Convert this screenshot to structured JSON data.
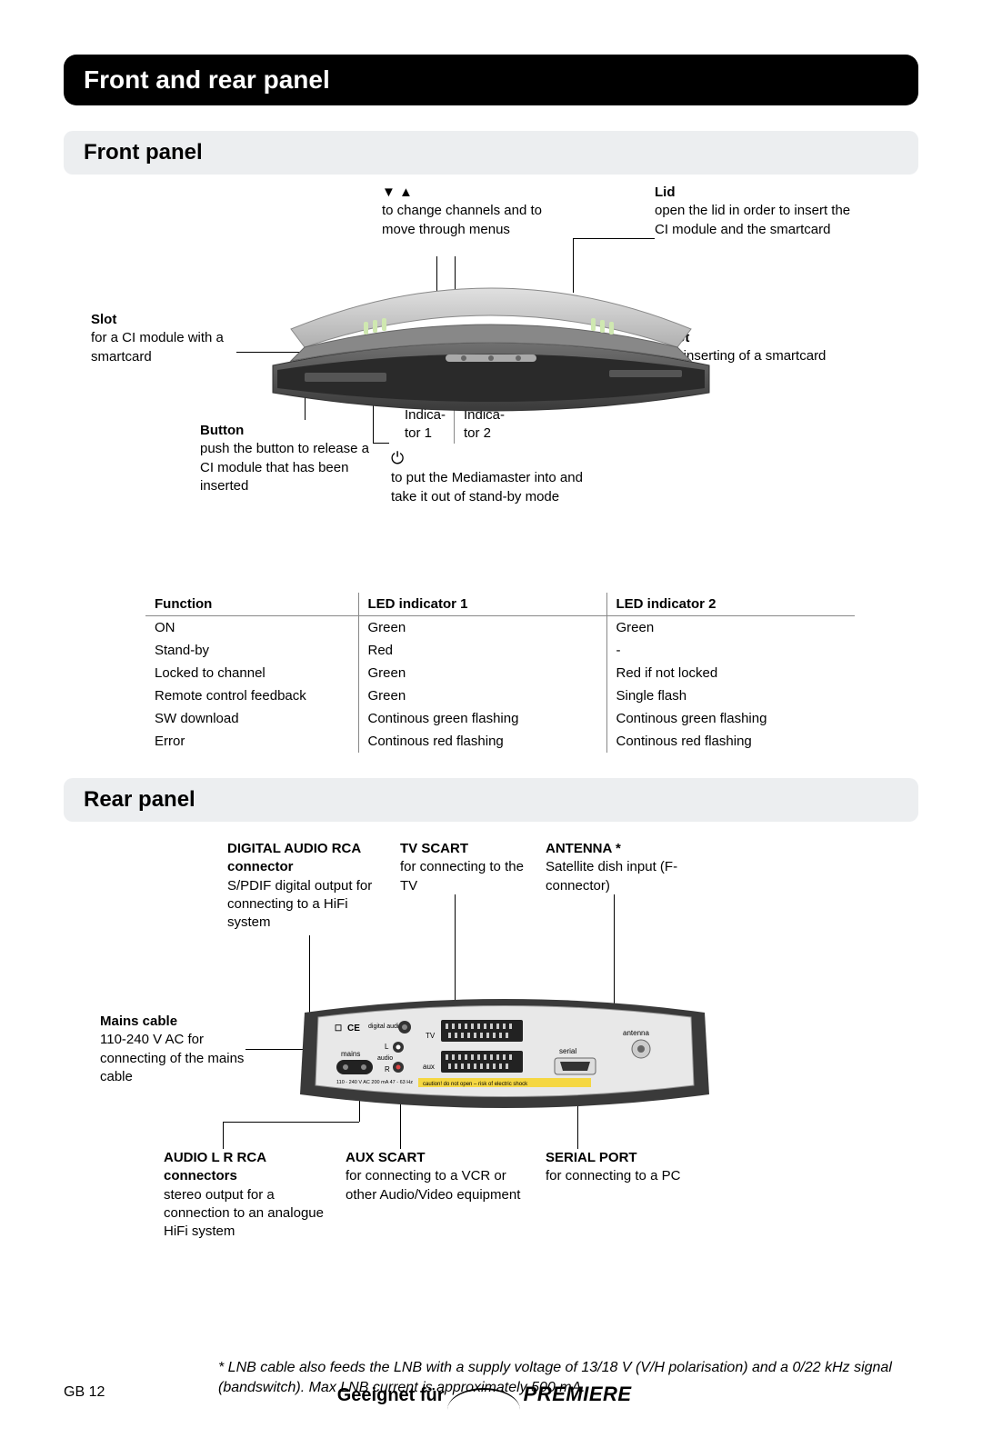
{
  "title": "Front and rear panel",
  "front": {
    "heading": "Front panel",
    "callouts": {
      "arrows": {
        "symbol": "▼ ▲",
        "text": "to change channels and to move through menus"
      },
      "lid": {
        "bold": "Lid",
        "text": "open the lid in order to insert the CI module and the smartcard"
      },
      "slot_ci": {
        "bold": "Slot",
        "text": "for a CI module with a smartcard"
      },
      "slot_card": {
        "bold": "Slot",
        "text": "for inserting of a smartcard"
      },
      "button": {
        "bold": "Button",
        "text": "push the button to release a CI module that has been inserted"
      },
      "indicator1": "Indica-\ntor 1",
      "indicator2": "Indica-\ntor 2",
      "standby": {
        "symbol": "⏻",
        "text": "to put the Mediamaster into and take it out of stand-by mode"
      }
    },
    "table": {
      "headers": [
        "Function",
        "LED indicator 1",
        "LED indicator 2"
      ],
      "rows": [
        [
          "ON",
          "Green",
          "Green"
        ],
        [
          "Stand-by",
          "Red",
          "-"
        ],
        [
          "Locked to channel",
          "Green",
          "Red if not locked"
        ],
        [
          "Remote control feedback",
          "Green",
          "Single flash"
        ],
        [
          "SW download",
          "Continous green flashing",
          "Continous green flashing"
        ],
        [
          "Error",
          "Continous red flashing",
          "Continous red flashing"
        ]
      ]
    }
  },
  "rear": {
    "heading": "Rear panel",
    "callouts": {
      "digital_audio": {
        "bold": "DIGITAL AUDIO RCA connector",
        "text": "S/PDIF digital output for connecting to a HiFi system"
      },
      "tv_scart": {
        "bold": "TV SCART",
        "text": "for connecting to  the TV"
      },
      "antenna": {
        "bold": "ANTENNA *",
        "text": "Satellite dish input (F-connector)"
      },
      "mains": {
        "bold": "Mains cable",
        "text": "110-240 V AC for connecting of the mains cable"
      },
      "audio_lr": {
        "bold": "AUDIO L  R RCA connectors",
        "text": "stereo output for a connection to an analogue HiFi system"
      },
      "aux_scart": {
        "bold": "AUX SCART",
        "text": "for connecting to a VCR or other Audio/Video equipment"
      },
      "serial": {
        "bold": "SERIAL PORT",
        "text": "for connecting to a PC"
      }
    },
    "device_labels": {
      "ce": "CE",
      "digital_audio": "digital audio",
      "tv": "TV",
      "mains": "mains",
      "l": "L",
      "audio": "audio",
      "r": "R",
      "aux": "aux",
      "serial": "serial",
      "antenna": "antenna",
      "voltage": "110 - 240 V AC\n200 mA 47 - 63 Hz",
      "warning": "caution! do not open – risk of electric shock"
    }
  },
  "footnote": "* LNB cable also feeds the LNB with a supply voltage of 13/18 V (V/H polarisation) and a 0/22 kHz signal (bandswitch). Max LNB current is approximately 500 mA.",
  "footer": {
    "page": "GB 12",
    "brand_prefix": "Geeignet für",
    "brand": "PREMIERE"
  },
  "colors": {
    "device_dark": "#4a4a4a",
    "device_light": "#9a9a9a",
    "device_top": "#d5d5d5",
    "rear_body": "#e8e8e8",
    "rear_edge": "#3a3a3a"
  }
}
